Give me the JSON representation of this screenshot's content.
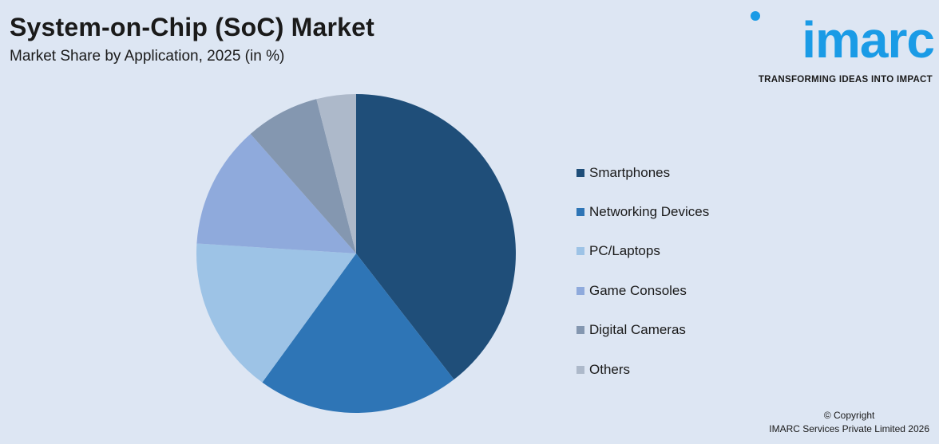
{
  "header": {
    "title": "System-on-Chip (SoC) Market",
    "subtitle": "Market Share by Application, 2025 (in %)"
  },
  "logo": {
    "wordmark": "imarc",
    "tagline": "TRANSFORMING IDEAS INTO IMPACT",
    "color": "#1a9be6"
  },
  "footer": {
    "copyright": "© Copyright",
    "company": "IMARC Services Private Limited 2026"
  },
  "chart_data": {
    "type": "pie",
    "title": "System-on-Chip (SoC) Market",
    "subtitle": "Market Share by Application, 2025 (in %)",
    "legend_position": "right",
    "start_angle": "12 o'clock",
    "direction": "clockwise",
    "categories": [
      "Smartphones",
      "Networking Devices",
      "PC/Laptops",
      "Game Consoles",
      "Digital Cameras",
      "Others"
    ],
    "values": [
      39.5,
      20.5,
      16.0,
      12.5,
      7.5,
      4.0
    ],
    "colors": [
      "#1f4e79",
      "#2e75b6",
      "#9dc3e6",
      "#8faadc",
      "#8497b0",
      "#adb9ca"
    ]
  }
}
